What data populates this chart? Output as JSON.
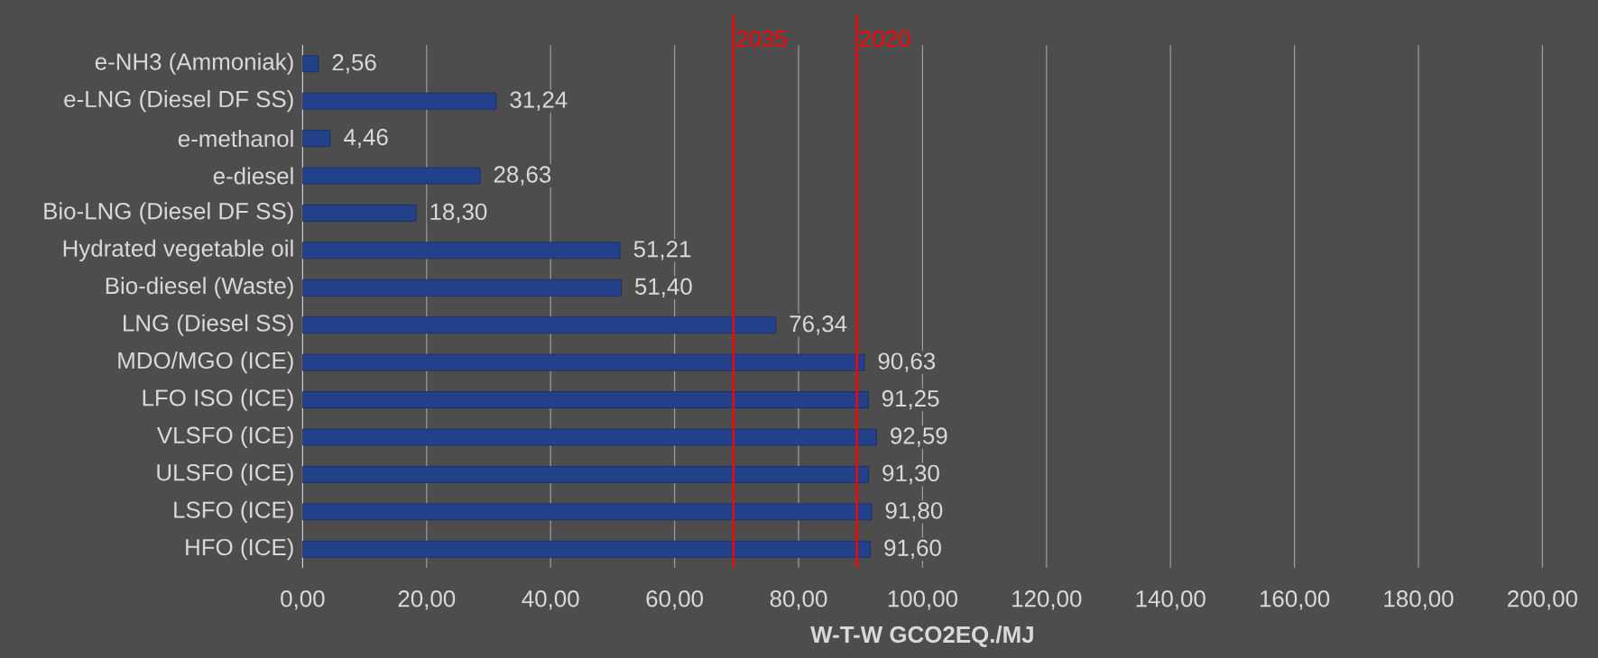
{
  "chart_data": {
    "type": "bar",
    "orientation": "horizontal",
    "xlabel": "W-T-W GCO2EQ./MJ",
    "categories": [
      "e-NH3 (Ammoniak)",
      "e-LNG (Diesel DF SS)",
      "e-methanol",
      "e-diesel",
      "Bio-LNG (Diesel DF SS)",
      "Hydrated vegetable oil",
      "Bio-diesel (Waste)",
      "LNG (Diesel SS)",
      "MDO/MGO (ICE)",
      "LFO ISO (ICE)",
      "VLSFO (ICE)",
      "ULSFO (ICE)",
      "LSFO (ICE)",
      "HFO (ICE)"
    ],
    "values": [
      2.56,
      31.24,
      4.46,
      28.63,
      18.3,
      51.21,
      51.4,
      76.34,
      90.63,
      91.25,
      92.59,
      91.3,
      91.8,
      91.6
    ],
    "value_labels": [
      "2,56",
      "31,24",
      "4,46",
      "28,63",
      "18,30",
      "51,21",
      "51,40",
      "76,34",
      "90,63",
      "91,25",
      "92,59",
      "91,30",
      "91,80",
      "91,60"
    ],
    "color": "#23408a",
    "xlim": [
      0,
      200
    ],
    "xticks": [
      {
        "value": 0,
        "label": "0,00"
      },
      {
        "value": 20,
        "label": "20,00"
      },
      {
        "value": 40,
        "label": "40,00"
      },
      {
        "value": 60,
        "label": "60,00"
      },
      {
        "value": 80,
        "label": "80,00"
      },
      {
        "value": 100,
        "label": "100,00"
      },
      {
        "value": 120,
        "label": "120,00"
      },
      {
        "value": 140,
        "label": "140,00"
      },
      {
        "value": 160,
        "label": "160,00"
      },
      {
        "value": 180,
        "label": "180,00"
      },
      {
        "value": 200,
        "label": "200,00"
      }
    ],
    "grid": "x",
    "annotations": [
      "2035",
      "2020"
    ],
    "ref_lines": [
      {
        "axis": "x",
        "value": 69.5,
        "color": "#ff0000"
      },
      {
        "axis": "x",
        "value": 89.4,
        "color": "#ff0000"
      }
    ]
  }
}
